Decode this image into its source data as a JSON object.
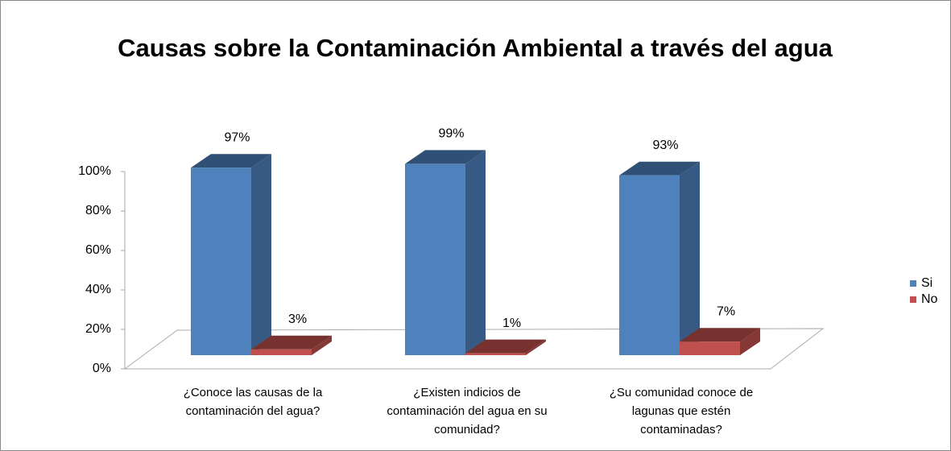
{
  "chart_data": {
    "type": "bar3d",
    "title": "Causas sobre la Contaminación Ambiental a través del agua",
    "categories": [
      "¿Conoce las causas de la contaminación del agua?",
      "¿Existen indicios de contaminación del agua en su comunidad?",
      "¿Su comunidad conoce de lagunas que estén contaminadas?"
    ],
    "series": [
      {
        "name": "Si",
        "color": "#4f81bd",
        "values": [
          97,
          99,
          93
        ],
        "value_labels": [
          "97%",
          "99%",
          "93%"
        ]
      },
      {
        "name": "No",
        "color": "#c0504d",
        "values": [
          3,
          1,
          7
        ],
        "value_labels": [
          "3%",
          "1%",
          "7%"
        ]
      }
    ],
    "ylim": [
      0,
      100
    ],
    "yticks": [
      {
        "value": 0,
        "label": "0%"
      },
      {
        "value": 20,
        "label": "20%"
      },
      {
        "value": 40,
        "label": "40%"
      },
      {
        "value": 60,
        "label": "60%"
      },
      {
        "value": 80,
        "label": "80%"
      },
      {
        "value": 100,
        "label": "100%"
      }
    ],
    "legend": "right"
  }
}
